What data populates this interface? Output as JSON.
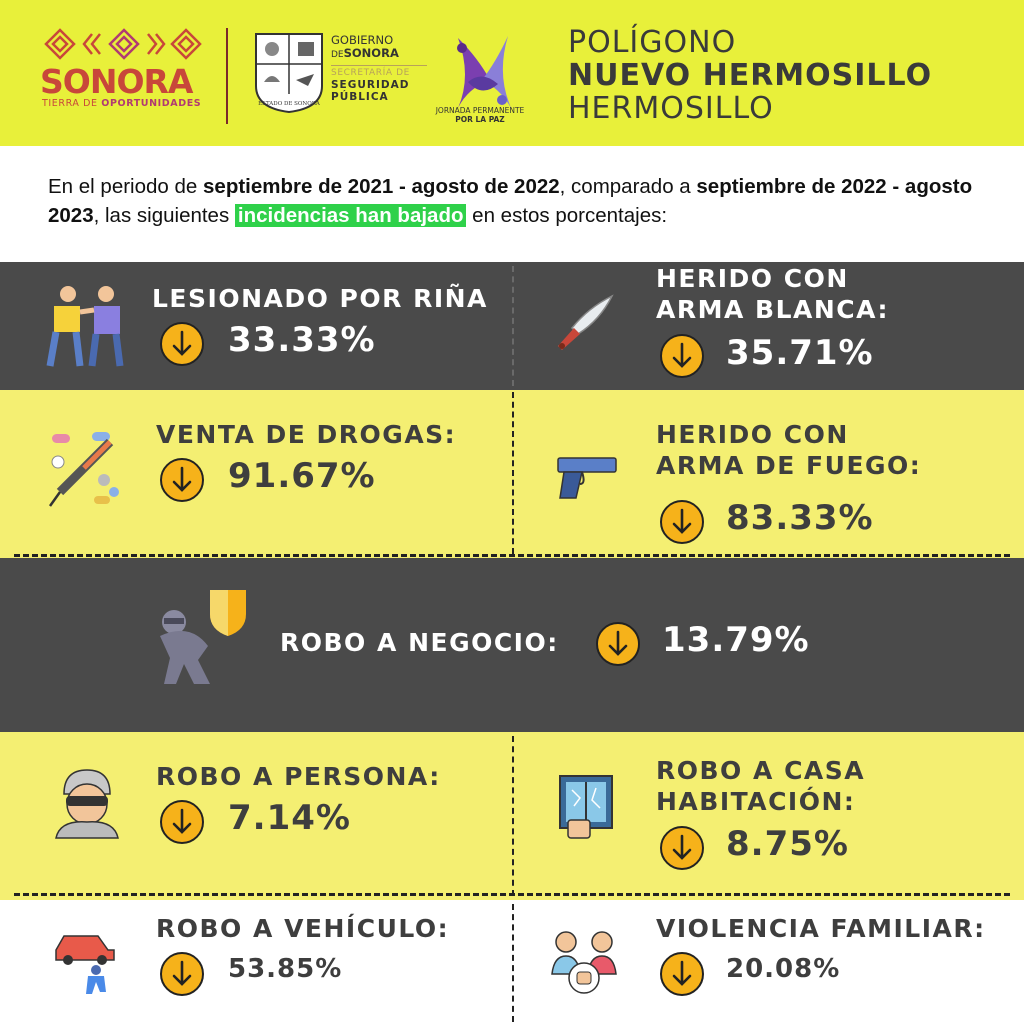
{
  "header": {
    "sonora_logo_text": "SONORA",
    "sonora_tagline_1": "TIERRA DE",
    "sonora_tagline_2": "OPORTUNIDADES",
    "gov_line1": "GOBIERNO",
    "gov_line2_prefix": "DE",
    "gov_line2": "SONORA",
    "gov_line3": "SECRETARÍA DE",
    "gov_line4": "SEGURIDAD",
    "gov_line5": "PÚBLICA",
    "seal_caption": "ESTADO DE SONORA",
    "peace_line1": "JORNADA PERMANENTE",
    "peace_line2": "POR LA PAZ",
    "title_1": "POLÍGONO",
    "title_2": "NUEVO HERMOSILLO",
    "title_3": "HERMOSILLO"
  },
  "intro": {
    "p1": "En el periodo de ",
    "b1": "septiembre de 2021 - agosto de 2022",
    "p2": ", comparado a ",
    "b2": "septiembre de 2022 - agosto 2023",
    "p3": ", las siguientes ",
    "highlight": "incidencias han bajado",
    "p4": " en estos porcentajes:"
  },
  "stats": {
    "lesionado": {
      "title": "LESIONADO POR RIÑA",
      "pct": "33.33%",
      "icon": "fighting-people-icon"
    },
    "arma_blanca": {
      "title1": "HERIDO CON",
      "title2": "ARMA BLANCA:",
      "pct": "35.71%",
      "icon": "knife-icon"
    },
    "drogas": {
      "title": "VENTA DE DROGAS:",
      "pct": "91.67%",
      "icon": "drugs-syringe-icon"
    },
    "arma_fuego": {
      "title1": "HERIDO CON",
      "title2": "ARMA DE FUEGO:",
      "pct": "83.33%",
      "icon": "gun-icon"
    },
    "negocio": {
      "title": "ROBO A NEGOCIO:",
      "pct": "13.79%",
      "icon": "burglar-shield-icon"
    },
    "persona": {
      "title": "ROBO A PERSONA:",
      "pct": "7.14%",
      "icon": "thief-mask-icon"
    },
    "casa": {
      "title1": "ROBO A CASA",
      "title2": "HABITACIÓN:",
      "pct": "8.75%",
      "icon": "broken-window-icon"
    },
    "vehiculo": {
      "title": "ROBO A VEHÍCULO:",
      "pct": "53.85%",
      "icon": "car-thief-icon"
    },
    "violencia": {
      "title": "VIOLENCIA FAMILIAR:",
      "pct": "20.08%",
      "icon": "family-violence-icon"
    }
  },
  "colors": {
    "header_bg": "#e8f03a",
    "dark_band": "#4a4a4a",
    "yellow_band": "#f4ef72",
    "arrow": "#f6b21a",
    "highlight": "#2fd14a"
  }
}
